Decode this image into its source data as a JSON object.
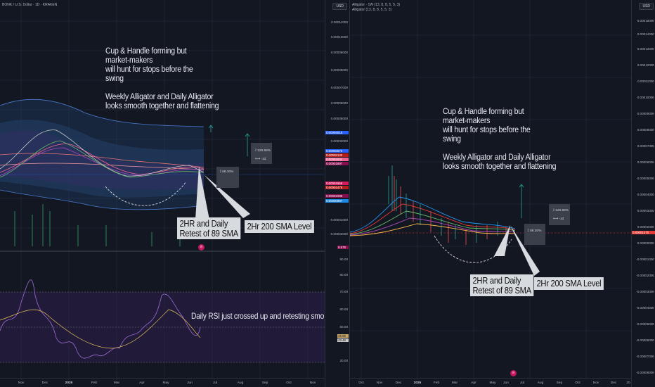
{
  "left": {
    "symbol": "BONK / U.S. Dollar · 1D · KRAKEN",
    "currency": "USD",
    "price_ticks": [
      "0.00011000",
      "0.00010000",
      "0.00009000",
      "0.00008000",
      "0.00007000",
      "0.00006000",
      "0.00005000",
      "0.00004000",
      "0.00003000",
      "0.00002000",
      "0.00001000",
      "0.00000000",
      "-0.00001000",
      "-0.00002000"
    ],
    "price_labels": [
      {
        "text": "0.00004018",
        "color": "#2962ff"
      },
      {
        "text": "0.00002573",
        "color": "#2962ff"
      },
      {
        "text": "0.00002140",
        "color": "#b71c1c"
      },
      {
        "text": "0.00001932",
        "color": "#f06292"
      },
      {
        "text": "0.00001897",
        "color": "#880e4f"
      },
      {
        "text": "0.00001656",
        "color": "#d81b60"
      },
      {
        "text": "0.00001478",
        "color": "#b71c1c"
      },
      {
        "text": "0.00001088",
        "color": "#880e4f"
      },
      {
        "text": "0.00000987",
        "color": "#1e88e5"
      }
    ],
    "volume_label": "8.678",
    "rsi_ticks": [
      "90.00",
      "80.00",
      "70.00",
      "60.00",
      "50.00",
      "40.00",
      "30.00",
      "20.00"
    ],
    "rsi_labels": [
      "45.98",
      "43.49"
    ],
    "months": [
      "Nov",
      "Dec",
      "2025",
      "Feb",
      "Mar",
      "Apr",
      "May",
      "Jun",
      "Jul",
      "Aug",
      "Sep",
      "Oct",
      "Nov"
    ],
    "note": "Cup & Handle forming but\nmarket-makers\nwill hunt for stops before the\nswing\n\nWeekly Alligator and Daily Alligator\nlooks smooth together and flattening",
    "callout_1": "2HR and Daily\nRetest of 89 SMA",
    "callout_2": "2Hr 200 SMA Level",
    "rsi_note": "Daily RSI just crossed up and retesting smo",
    "box_1": "88.30%",
    "box_2": "126.88%",
    "box_2_sub": "-1d"
  },
  "right": {
    "indicator_1": "Alligator · 1W (13, 8, 8, 5, 5, 3)",
    "indicator_2": "Alligator (13, 8, 8, 5, 5, 3)",
    "currency": "USD",
    "price_ticks": [
      "0.00015000",
      "0.00014000",
      "0.00013000",
      "0.00012000",
      "0.00011000",
      "0.00010000",
      "0.00009000",
      "0.00008000",
      "0.00007000",
      "0.00006000",
      "0.00005000",
      "0.00004000",
      "0.00003000",
      "0.00002000",
      "0.00001000",
      "0.00000000",
      "-0.00001000",
      "-0.00002000",
      "-0.00003000",
      "-0.00004000",
      "-0.00005000",
      "-0.00006000",
      "-0.00007000",
      "-0.00008000"
    ],
    "price_label": "0.00001470",
    "months": [
      "Oct",
      "Nov",
      "Dec",
      "2025",
      "Feb",
      "Mar",
      "Apr",
      "May",
      "Jun",
      "Jul",
      "Aug",
      "Sep",
      "Oct",
      "Nov",
      "Dec",
      "20"
    ],
    "note": "Cup & Handle forming but\nmarket-makers\nwill hunt for stops before the\nswing\n\nWeekly Alligator and Daily Alligator\nlooks smooth together and flattening",
    "callout_1": "2HR and Daily\nRetest of 89 SMA",
    "callout_2": "2Hr 200 SMA Level",
    "box_1": "88.30%",
    "box_2": "126.88%",
    "box_2_sub": "-1d"
  }
}
